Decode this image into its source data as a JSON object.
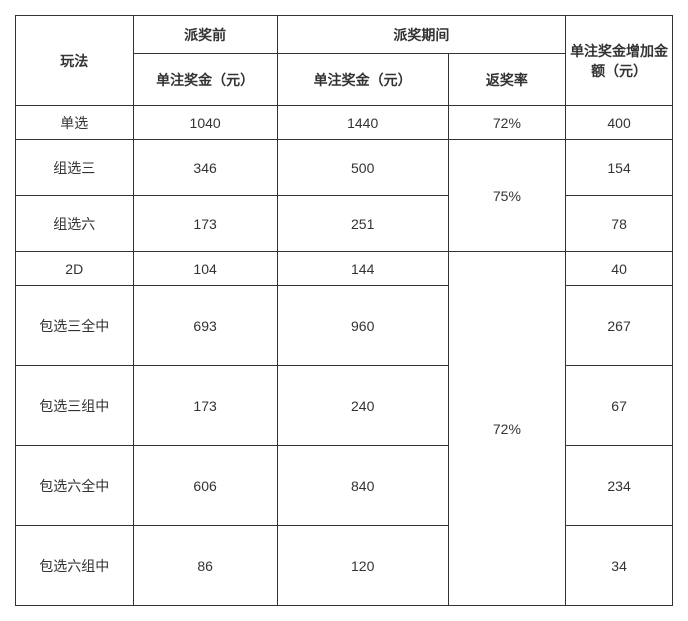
{
  "table": {
    "headers": {
      "play_method": "玩法",
      "before_bonus": "派奖前",
      "during_bonus": "派奖期间",
      "single_prize": "单注奖金（元）",
      "return_rate": "返奖率",
      "increase_amount": "单注奖金增加金额（元）"
    },
    "rows": [
      {
        "play": "单选",
        "before": "1040",
        "during": "1440",
        "rate": "72%",
        "increase": "400"
      },
      {
        "play": "组选三",
        "before": "346",
        "during": "500",
        "rate": "",
        "increase": "154"
      },
      {
        "play": "组选六",
        "before": "173",
        "during": "251",
        "rate": "",
        "increase": "78"
      },
      {
        "play": "2D",
        "before": "104",
        "during": "144",
        "rate": "",
        "increase": "40"
      },
      {
        "play": "包选三全中",
        "before": "693",
        "during": "960",
        "rate": "",
        "increase": "267"
      },
      {
        "play": "包选三组中",
        "before": "173",
        "during": "240",
        "rate": "",
        "increase": "67"
      },
      {
        "play": "包选六全中",
        "before": "606",
        "during": "840",
        "rate": "",
        "increase": "234"
      },
      {
        "play": "包选六组中",
        "before": "86",
        "during": "120",
        "rate": "",
        "increase": "34"
      }
    ],
    "rate_groups": {
      "group1": "75%",
      "group2": "72%"
    },
    "colors": {
      "border": "#333333",
      "text": "#333333",
      "background": "#ffffff"
    },
    "font_size": 14
  }
}
